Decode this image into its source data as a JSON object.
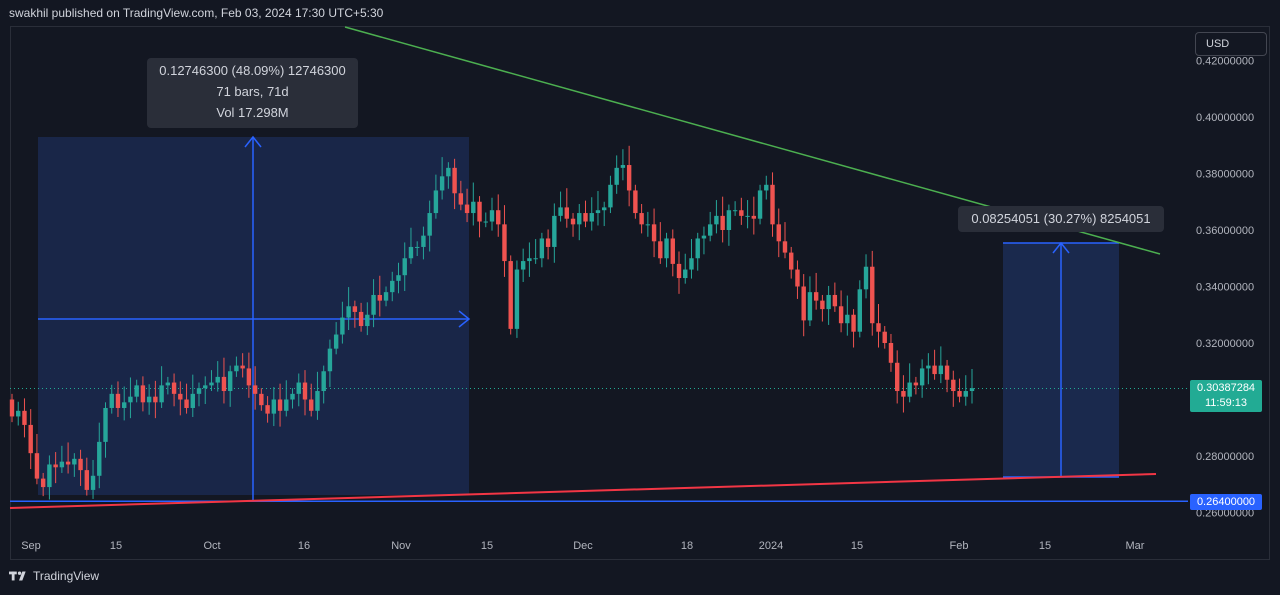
{
  "header": {
    "publisher_line": "swakhil published on TradingView.com, Feb 03, 2024 17:30 UTC+5:30"
  },
  "currency_label": "USD",
  "footer": {
    "brand": "TradingView"
  },
  "measure_1": {
    "line1": "0.12746300 (48.09%) 12746300",
    "line2": "71 bars, 71d",
    "line3": "Vol 17.298M"
  },
  "measure_2": {
    "line1": "0.08254051 (30.27%) 8254051"
  },
  "last_price": {
    "value": "0.30387284",
    "countdown": "11:59:13"
  },
  "level_label": "0.26400000",
  "colors": {
    "background": "#131722",
    "up": "#26a69a",
    "down": "#ef5350",
    "trend_resistance": "#4caf50",
    "trend_support": "#f23645",
    "measure": "#2962ff",
    "measure_fill": "#1c2b52"
  },
  "icons": [
    "tradingview-logo-icon"
  ],
  "chart_data": {
    "type": "candlestick",
    "y_axis_labels": [
      "0.42000000",
      "0.40000000",
      "0.38000000",
      "0.36000000",
      "0.34000000",
      "0.32000000",
      "0.28000000",
      "0.26000000"
    ],
    "x_axis_labels": [
      "Sep",
      "15",
      "Oct",
      "16",
      "Nov",
      "15",
      "Dec",
      "18",
      "2024",
      "15",
      "Feb",
      "15",
      "Mar"
    ],
    "ylim": [
      0.257,
      0.427
    ],
    "grid": false,
    "candles_close_approx": [
      0.294,
      0.296,
      0.291,
      0.281,
      0.272,
      0.269,
      0.277,
      0.276,
      0.278,
      0.277,
      0.279,
      0.275,
      0.268,
      0.273,
      0.285,
      0.297,
      0.302,
      0.297,
      0.299,
      0.301,
      0.305,
      0.299,
      0.301,
      0.299,
      0.305,
      0.306,
      0.302,
      0.3,
      0.297,
      0.302,
      0.304,
      0.305,
      0.306,
      0.308,
      0.303,
      0.31,
      0.312,
      0.311,
      0.305,
      0.302,
      0.298,
      0.295,
      0.3,
      0.296,
      0.3,
      0.302,
      0.306,
      0.3,
      0.296,
      0.303,
      0.31,
      0.318,
      0.323,
      0.329,
      0.333,
      0.331,
      0.326,
      0.33,
      0.337,
      0.335,
      0.338,
      0.342,
      0.344,
      0.35,
      0.354,
      0.354,
      0.358,
      0.366,
      0.374,
      0.379,
      0.382,
      0.373,
      0.369,
      0.366,
      0.37,
      0.363,
      0.363,
      0.367,
      0.362,
      0.349,
      0.325,
      0.346,
      0.349,
      0.35,
      0.35,
      0.357,
      0.354,
      0.365,
      0.368,
      0.364,
      0.362,
      0.366,
      0.363,
      0.366,
      0.367,
      0.368,
      0.376,
      0.382,
      0.383,
      0.374,
      0.366,
      0.362,
      0.362,
      0.356,
      0.35,
      0.357,
      0.348,
      0.343,
      0.346,
      0.35,
      0.357,
      0.358,
      0.362,
      0.365,
      0.36,
      0.367,
      0.367,
      0.365,
      0.365,
      0.364,
      0.374,
      0.376,
      0.362,
      0.356,
      0.352,
      0.346,
      0.34,
      0.328,
      0.338,
      0.335,
      0.332,
      0.337,
      0.333,
      0.327,
      0.33,
      0.324,
      0.339,
      0.347,
      0.327,
      0.324,
      0.32,
      0.313,
      0.303,
      0.301,
      0.306,
      0.305,
      0.311,
      0.312,
      0.309,
      0.312,
      0.307,
      0.303,
      0.301,
      0.303,
      0.304
    ],
    "last_price": 0.30387284,
    "horizontal_level": 0.264,
    "trendlines": [
      {
        "name": "resistance",
        "from": [
          0.427,
          "early Oct"
        ],
        "to": [
          0.352,
          "mid Feb"
        ]
      },
      {
        "name": "support",
        "from": [
          0.262,
          "Sep"
        ],
        "to": [
          0.273,
          "Mar"
        ]
      }
    ]
  }
}
